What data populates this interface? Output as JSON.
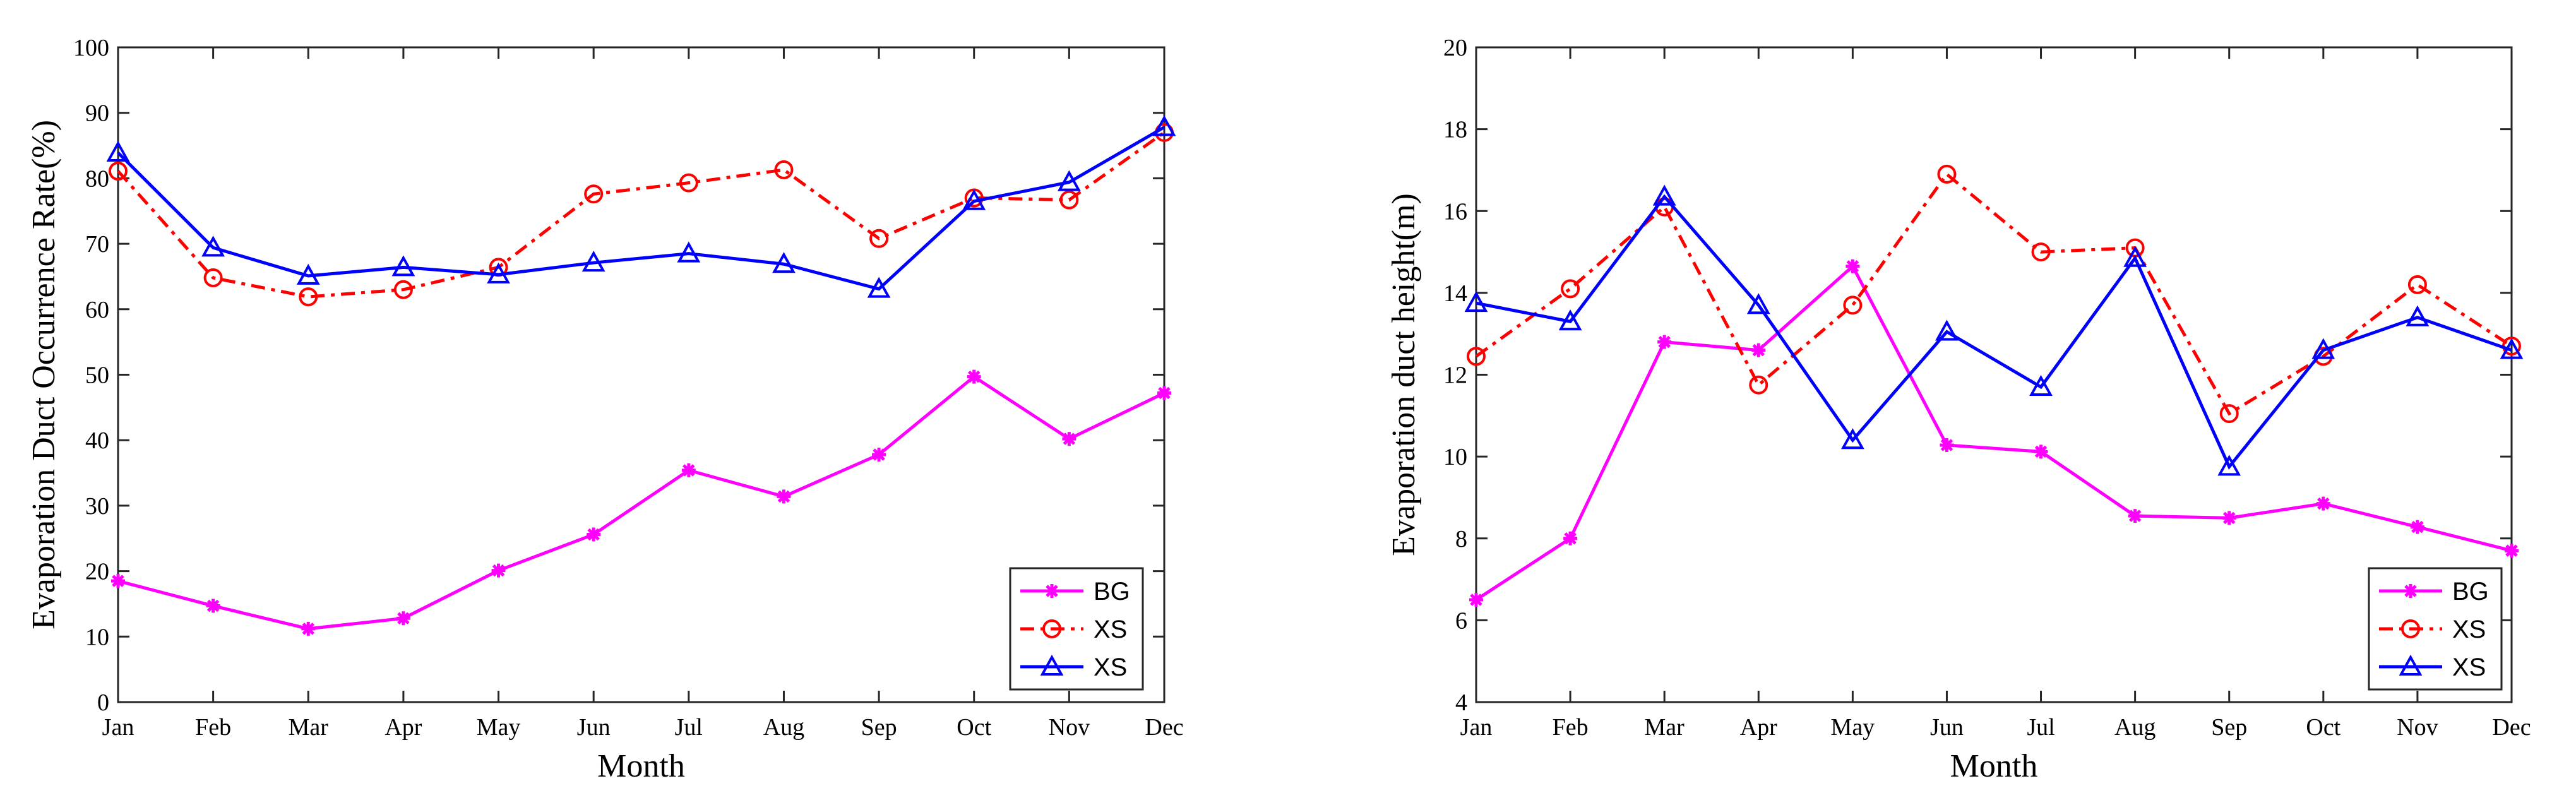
{
  "chart_data": [
    {
      "type": "line",
      "xlabel": "Month",
      "ylabel": "Evaporation Duct Occurrence Rate(%)",
      "ylim": [
        0,
        100
      ],
      "yticks": [
        0,
        10,
        20,
        30,
        40,
        50,
        60,
        70,
        80,
        90,
        100
      ],
      "categories": [
        "Jan",
        "Feb",
        "Mar",
        "Apr",
        "May",
        "Jun",
        "Jul",
        "Aug",
        "Sep",
        "Oct",
        "Nov",
        "Dec"
      ],
      "legend_position": "bottom-right",
      "series": [
        {
          "name": "BG",
          "color": "#ff00ff",
          "marker": "asterisk",
          "dash": "solid",
          "values": [
            18.5,
            14.7,
            11.2,
            12.8,
            20.1,
            25.6,
            35.4,
            31.4,
            37.8,
            49.7,
            40.2,
            47.2
          ]
        },
        {
          "name": "XS",
          "color": "#ff0000",
          "marker": "circle",
          "dash": "dashdot",
          "values": [
            81.1,
            64.8,
            61.9,
            63.0,
            66.4,
            77.6,
            79.3,
            81.3,
            70.8,
            77.0,
            76.7,
            87.0
          ]
        },
        {
          "name": "XS",
          "color": "#0000ff",
          "marker": "triangle",
          "dash": "solid",
          "values": [
            83.9,
            69.4,
            65.1,
            66.4,
            65.3,
            67.1,
            68.5,
            66.9,
            63.1,
            76.5,
            79.4,
            87.8
          ]
        }
      ]
    },
    {
      "type": "line",
      "xlabel": "Month",
      "ylabel": "Evaporation duct height(m)",
      "ylim": [
        4,
        20
      ],
      "yticks": [
        4,
        6,
        8,
        10,
        12,
        14,
        16,
        18,
        20
      ],
      "categories": [
        "Jan",
        "Feb",
        "Mar",
        "Apr",
        "May",
        "Jun",
        "Jul",
        "Aug",
        "Sep",
        "Oct",
        "Nov",
        "Dec"
      ],
      "legend_position": "bottom-right",
      "series": [
        {
          "name": "BG",
          "color": "#ff00ff",
          "marker": "asterisk",
          "dash": "solid",
          "values": [
            6.5,
            8.0,
            12.8,
            12.6,
            14.65,
            10.28,
            10.12,
            8.55,
            8.5,
            8.85,
            8.28,
            7.7
          ]
        },
        {
          "name": "XS",
          "color": "#ff0000",
          "marker": "circle",
          "dash": "dashdot",
          "values": [
            12.45,
            14.1,
            16.1,
            11.75,
            13.7,
            16.9,
            15.0,
            15.1,
            11.05,
            12.45,
            14.2,
            12.7
          ]
        },
        {
          "name": "XS",
          "color": "#0000ff",
          "marker": "triangle",
          "dash": "solid",
          "values": [
            13.75,
            13.3,
            16.35,
            13.7,
            10.4,
            13.05,
            11.7,
            14.85,
            9.75,
            12.6,
            13.4,
            12.6
          ]
        }
      ]
    }
  ]
}
